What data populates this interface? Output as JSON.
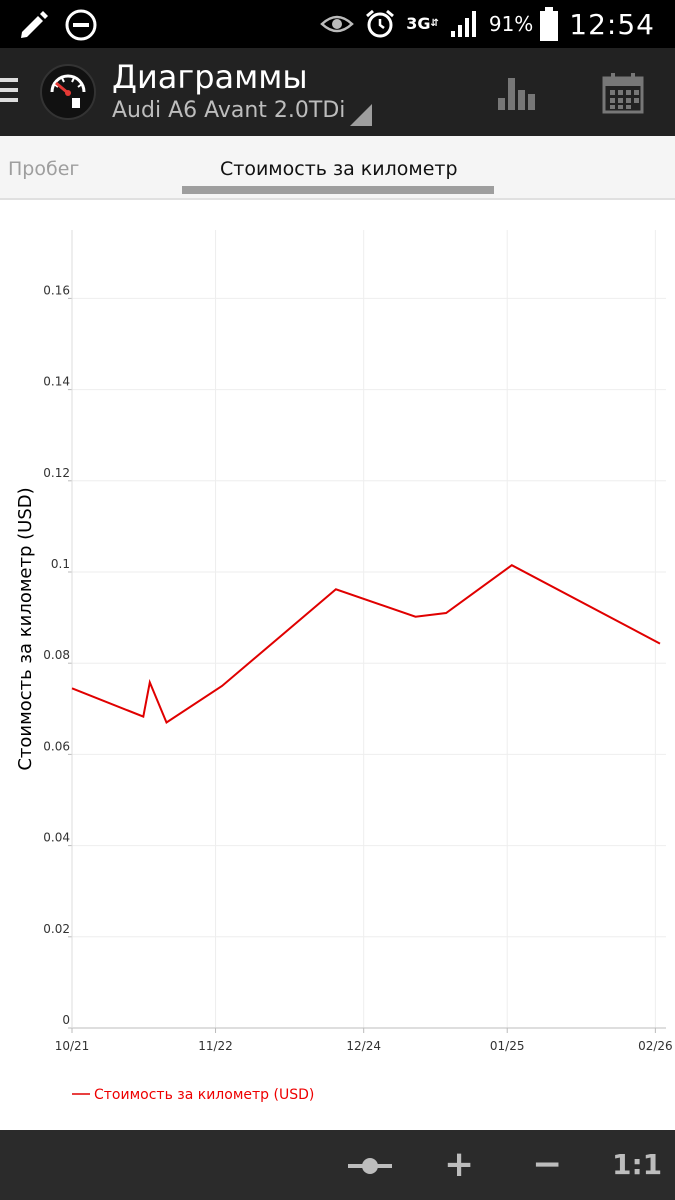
{
  "status_bar": {
    "network": "3G",
    "battery": "91%",
    "time": "12:54",
    "icons": [
      "pencil-icon",
      "do-not-disturb-icon",
      "eye-icon",
      "alarm-icon",
      "network-arrows-icon",
      "signal-icon",
      "battery-icon"
    ]
  },
  "app_bar": {
    "title": "Диаграммы",
    "subtitle": "Audi A6 Avant 2.0TDi",
    "icons": [
      "menu-icon",
      "fuel-gauge-icon",
      "bar-chart-icon",
      "calendar-icon"
    ]
  },
  "tabs": [
    {
      "label": "Пробег",
      "selected": false
    },
    {
      "label": "Стоимость за километр",
      "selected": true
    }
  ],
  "chart_data": {
    "type": "line",
    "title": "",
    "ylabel": "Стоимость за километр (USD)",
    "xlabel": "",
    "ylim": [
      0,
      0.175
    ],
    "yticks": [
      {
        "v": 0,
        "label": "0"
      },
      {
        "v": 0.02,
        "label": "0.02"
      },
      {
        "v": 0.04,
        "label": "0.04"
      },
      {
        "v": 0.06,
        "label": "0.06"
      },
      {
        "v": 0.08,
        "label": "0.08"
      },
      {
        "v": 0.1,
        "label": "0.1"
      },
      {
        "v": 0.12,
        "label": "0.12"
      },
      {
        "v": 0.14,
        "label": "0.14"
      },
      {
        "v": 0.16,
        "label": "0.16"
      }
    ],
    "xlim": [
      0,
      12.7
    ],
    "xticks": [
      {
        "v": 0,
        "label": "10/21"
      },
      {
        "v": 3.1,
        "label": "11/22"
      },
      {
        "v": 6.3,
        "label": "12/24"
      },
      {
        "v": 9.4,
        "label": "01/25"
      },
      {
        "v": 12.6,
        "label": "02/26"
      }
    ],
    "grid": true,
    "legend_position": "bottom-left",
    "series": [
      {
        "name": "Стоимость за километр (USD)",
        "color": "#e00000",
        "points": [
          [
            0.0,
            0.0745
          ],
          [
            1.54,
            0.0683
          ],
          [
            1.68,
            0.0758
          ],
          [
            2.04,
            0.067
          ],
          [
            3.24,
            0.075
          ],
          [
            5.7,
            0.0962
          ],
          [
            7.42,
            0.0902
          ],
          [
            8.08,
            0.091
          ],
          [
            9.5,
            0.1015
          ],
          [
            12.7,
            0.0843
          ]
        ]
      }
    ]
  },
  "bottom_bar": {
    "zoom_in": "+",
    "zoom_out": "−",
    "zoom_reset": "1:1",
    "icons": [
      "zoom-slider-icon"
    ]
  }
}
